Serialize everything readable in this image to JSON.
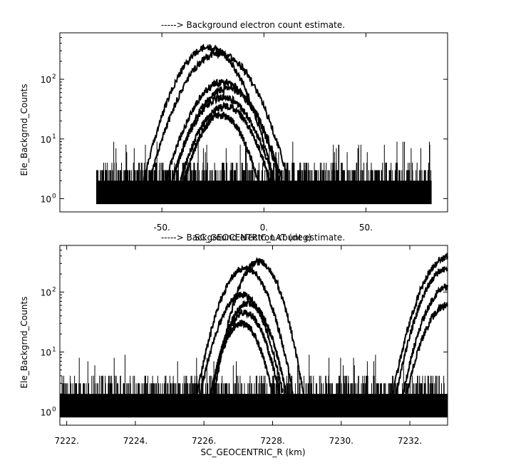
{
  "chart_data": [
    {
      "type": "line",
      "title": "-----> Background electron count estimate.",
      "xlabel": "SC_GEOCENTRIC_LAT (deg)",
      "ylabel": "Ele_Backgrnd_Counts",
      "xlim": [
        -100,
        90
      ],
      "ylim": [
        0.6,
        600
      ],
      "yscale": "log",
      "grid": false,
      "xticks": [
        {
          "v": -50,
          "label": "-50."
        },
        {
          "v": 0,
          "label": "0."
        },
        {
          "v": 50,
          "label": "50."
        }
      ],
      "yticks": [
        {
          "v": 1,
          "label": "10",
          "exp": "0"
        },
        {
          "v": 10,
          "label": "10",
          "exp": "1"
        },
        {
          "v": 100,
          "label": "10",
          "exp": "2"
        }
      ],
      "noise": {
        "x_range": [
          -82,
          82
        ],
        "baseline": 2,
        "max": 4
      },
      "series": [
        {
          "peak_x": -27,
          "peak": 340,
          "half_width": 32
        },
        {
          "peak_x": -22,
          "peak": 270,
          "half_width": 34
        },
        {
          "peak_x": -20,
          "peak": 90,
          "half_width": 28
        },
        {
          "peak_x": -18,
          "peak": 70,
          "half_width": 27
        },
        {
          "peak_x": -20,
          "peak": 50,
          "half_width": 25
        },
        {
          "peak_x": -19,
          "peak": 35,
          "half_width": 22
        },
        {
          "peak_x": -21,
          "peak": 25,
          "half_width": 18
        }
      ]
    },
    {
      "type": "line",
      "title": "-----> Background electron count estimate.",
      "xlabel": "SC_GEOCENTRIC_R (km)",
      "ylabel": "Ele_Backgrnd_Counts",
      "xlim": [
        7221.8,
        7233.1
      ],
      "ylim": [
        0.6,
        600
      ],
      "yscale": "log",
      "grid": false,
      "xticks": [
        {
          "v": 7222,
          "label": "7222."
        },
        {
          "v": 7224,
          "label": "7224."
        },
        {
          "v": 7226,
          "label": "7226."
        },
        {
          "v": 7228,
          "label": "7228."
        },
        {
          "v": 7230,
          "label": "7230."
        },
        {
          "v": 7232,
          "label": "7232."
        }
      ],
      "yticks": [
        {
          "v": 1,
          "label": "10",
          "exp": "0"
        },
        {
          "v": 10,
          "label": "10",
          "exp": "1"
        },
        {
          "v": 100,
          "label": "10",
          "exp": "2"
        }
      ],
      "noise": {
        "x_range": [
          7221.8,
          7233.1
        ],
        "baseline": 2,
        "max": 4
      },
      "series": [
        {
          "peak_x": 7227.6,
          "peak": 320,
          "half_width": 1.3
        },
        {
          "peak_x": 7227.2,
          "peak": 250,
          "half_width": 1.4
        },
        {
          "peak_x": 7227.1,
          "peak": 90,
          "half_width": 1.2
        },
        {
          "peak_x": 7227.3,
          "peak": 65,
          "half_width": 1.1
        },
        {
          "peak_x": 7227.2,
          "peak": 45,
          "half_width": 1.0
        },
        {
          "peak_x": 7227.1,
          "peak": 30,
          "half_width": 0.9
        },
        {
          "peak_x": 7233.1,
          "peak": 380,
          "half_width": 1.6
        },
        {
          "peak_x": 7233.1,
          "peak": 250,
          "half_width": 1.5
        },
        {
          "peak_x": 7233.1,
          "peak": 120,
          "half_width": 1.3
        },
        {
          "peak_x": 7233.1,
          "peak": 60,
          "half_width": 1.2
        }
      ]
    }
  ]
}
